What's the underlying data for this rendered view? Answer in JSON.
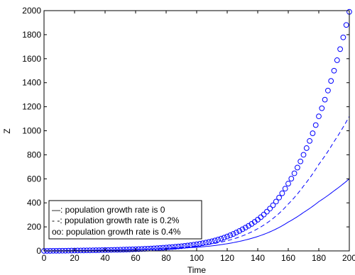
{
  "chart_data": {
    "type": "line",
    "xlabel": "Time",
    "ylabel": "Z",
    "xlim": [
      0,
      200
    ],
    "ylim": [
      0,
      2000
    ],
    "xticks": [
      0,
      20,
      40,
      60,
      80,
      100,
      120,
      140,
      160,
      180,
      200
    ],
    "yticks": [
      0,
      200,
      400,
      600,
      800,
      1000,
      1200,
      1400,
      1600,
      1800,
      2000
    ],
    "grid": false,
    "legend_position": "bottom-left",
    "series": [
      {
        "legend_label": "—: population growth rate is 0",
        "style": "solid",
        "color": "#0000ff",
        "x": [
          0,
          20,
          40,
          60,
          80,
          100,
          110,
          120,
          130,
          140,
          150,
          160,
          170,
          180,
          190,
          200
        ],
        "y": [
          0,
          2,
          5,
          10,
          18,
          30,
          42,
          60,
          85,
          120,
          170,
          240,
          320,
          410,
          500,
          600
        ]
      },
      {
        "legend_label": "- -: population growth rate is 0.2%",
        "style": "dashed",
        "color": "#0000ff",
        "x": [
          0,
          20,
          40,
          60,
          80,
          100,
          110,
          120,
          130,
          140,
          150,
          160,
          170,
          180,
          190,
          200
        ],
        "y": [
          0,
          2,
          5,
          11,
          22,
          40,
          58,
          85,
          125,
          185,
          270,
          390,
          540,
          720,
          910,
          1120
        ]
      },
      {
        "legend_label": "oo: population growth rate is 0.4%",
        "style": "circles",
        "color": "#0000ff",
        "x": [
          0,
          20,
          40,
          60,
          80,
          100,
          110,
          120,
          130,
          140,
          150,
          160,
          170,
          180,
          190,
          200
        ],
        "y": [
          0,
          3,
          7,
          14,
          28,
          55,
          80,
          120,
          180,
          260,
          380,
          560,
          800,
          1120,
          1500,
          1990
        ]
      }
    ]
  }
}
